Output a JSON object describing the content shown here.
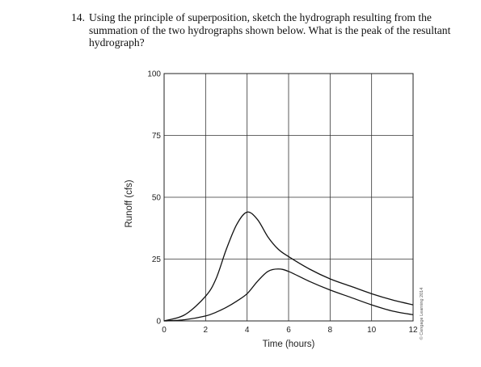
{
  "question": {
    "number": "14.",
    "text": "Using the principle of superposition, sketch the hydrograph resulting from the summation of the two hydrographs shown below. What is the peak of the resultant hydrograph?"
  },
  "credit": "© Cengage Learning 2014",
  "chart_data": {
    "type": "line",
    "xlabel": "Time (hours)",
    "ylabel": "Runoff (cfs)",
    "xlim": [
      0,
      12
    ],
    "ylim": [
      0,
      100
    ],
    "xticks": [
      0,
      2,
      4,
      6,
      8,
      10,
      12
    ],
    "yticks": [
      0,
      25,
      50,
      75,
      100
    ],
    "grid": true,
    "series": [
      {
        "x": [
          0,
          1,
          2,
          2.5,
          3,
          3.5,
          4,
          4.5,
          5,
          5.5,
          6,
          7,
          8,
          9,
          10,
          11,
          12
        ],
        "y": [
          0,
          2.5,
          10,
          17,
          29,
          39,
          44,
          41,
          34,
          29,
          26,
          21,
          17,
          14,
          11,
          8.5,
          6.5
        ]
      },
      {
        "x": [
          0,
          1,
          2,
          2.5,
          3,
          3.5,
          4,
          4.5,
          5,
          5.5,
          6,
          7,
          8,
          9,
          10,
          11,
          12
        ],
        "y": [
          0,
          0.5,
          2,
          3.5,
          5.5,
          8,
          11,
          16,
          20,
          21,
          20,
          16,
          12.5,
          9.5,
          6.5,
          4,
          2.5
        ]
      }
    ]
  }
}
